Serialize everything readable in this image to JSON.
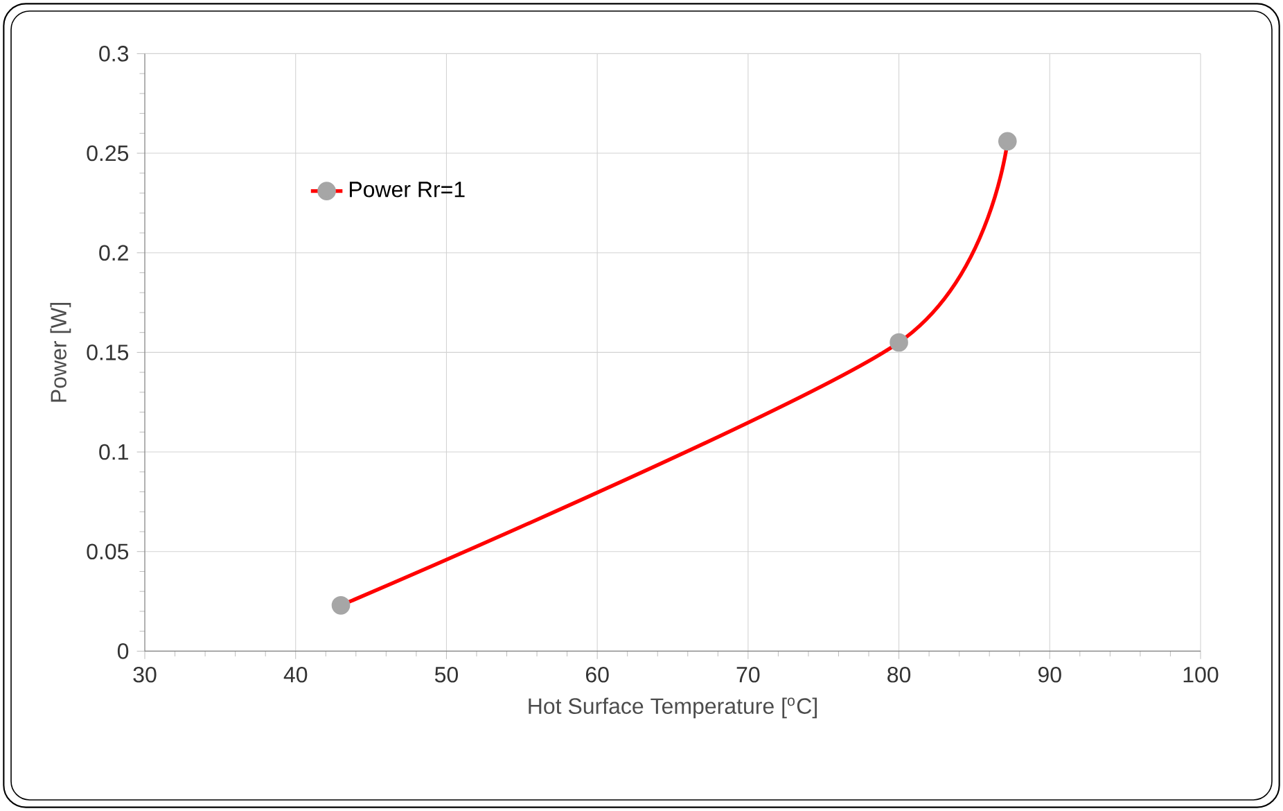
{
  "chart_data": {
    "type": "line",
    "xlabel": "Hot Surface Temperature [$^{o}$C]",
    "ylabel": "Power  [W]",
    "x": [
      43,
      80,
      87.2
    ],
    "series": [
      {
        "name": "Power Rr=1",
        "color": "#ff0000",
        "values": [
          0.023,
          0.155,
          0.256
        ]
      }
    ],
    "xlim": [
      30,
      100
    ],
    "xticks": [
      30,
      40,
      50,
      60,
      70,
      80,
      90,
      100
    ],
    "ylim": [
      0,
      0.3
    ],
    "yticks": [
      0,
      0.05,
      0.1,
      0.15,
      0.2,
      0.25,
      0.3
    ],
    "grid": true,
    "legend": "top left",
    "marker": "circle",
    "line_style": "solid"
  }
}
